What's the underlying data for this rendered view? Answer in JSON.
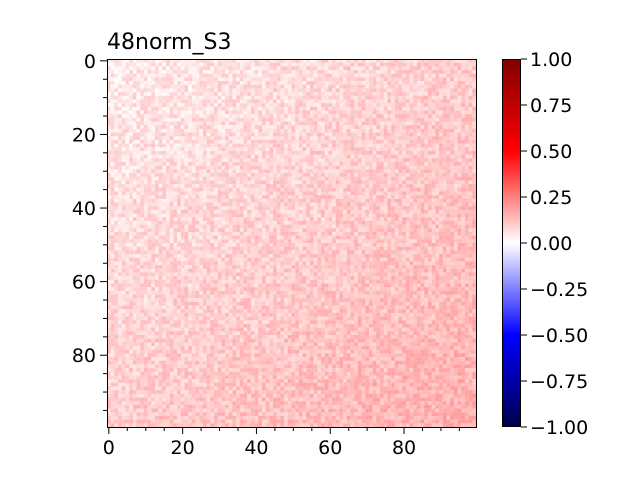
{
  "chart_data": {
    "type": "heatmap",
    "title": "48norm_S3",
    "xlabel": "",
    "ylabel": "",
    "grid": false,
    "rows": 100,
    "cols": 100,
    "x_range": [
      0,
      99
    ],
    "y_range": [
      0,
      99
    ],
    "x_ticks": [
      0,
      20,
      40,
      60,
      80
    ],
    "y_ticks": [
      0,
      20,
      40,
      60,
      80
    ],
    "colormap": "seismic",
    "colormap_stops": [
      "#00004c",
      "#0000ff",
      "#ffffff",
      "#ff0000",
      "#800000"
    ],
    "vmin": -1.0,
    "vmax": 1.0,
    "colorbar_ticks": [
      "1.00",
      "0.75",
      "0.50",
      "0.25",
      "0.00",
      "−0.25",
      "−0.50",
      "−0.75",
      "−1.00"
    ],
    "value_summary": {
      "top_left_corner_mean": 0.04,
      "bottom_right_corner_mean": 0.16,
      "overall_mean": 0.1,
      "noise_amplitude": 0.05
    }
  }
}
